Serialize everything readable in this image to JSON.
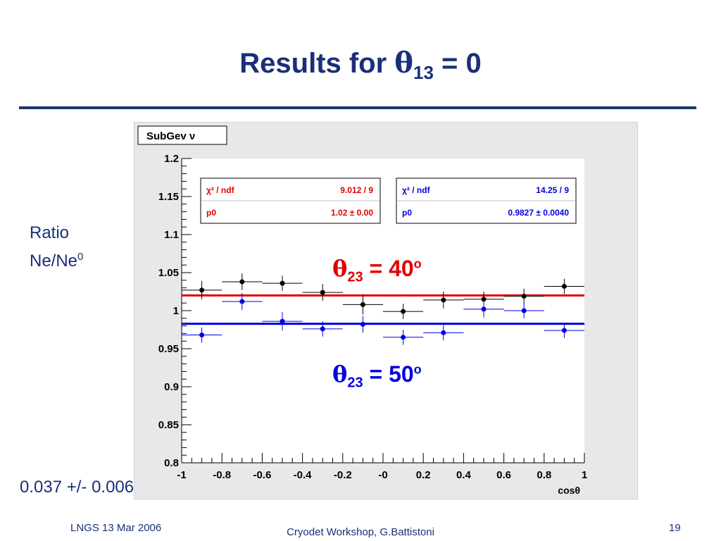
{
  "slide": {
    "title_prefix": "Results for ",
    "title_symbol": "θ",
    "title_sub": "13",
    "title_suffix": " = 0",
    "ylabel_line1": "Ratio",
    "ylabel_line2": "Ne/Ne",
    "ylabel_sup": "0",
    "note": "0.037 +/- 0.006",
    "footer_left": "LNGS 13 Mar 2006",
    "footer_center": "Cryodet Workshop, G.Battistoni",
    "footer_right": "19"
  },
  "annotations": {
    "red": {
      "symbol": "θ",
      "sub": "23",
      "text": " = 40",
      "sup": "o"
    },
    "blue": {
      "symbol": "θ",
      "sub": "23",
      "text": " = 50",
      "sup": "o"
    }
  },
  "colors": {
    "title": "#1a2f7a",
    "red": "#e00000",
    "blue": "#0000e0",
    "black": "#000000",
    "panel": "#e8e8e8",
    "frame": "#ffffff"
  },
  "chart_data": {
    "type": "scatter",
    "title": "SubGev ν",
    "xlabel": "cosθ",
    "ylabel": "",
    "xlim": [
      -1,
      1
    ],
    "ylim": [
      0.8,
      1.2
    ],
    "x_ticks": [
      "-1",
      "-0.8",
      "-0.6",
      "-0.4",
      "-0.2",
      "-0",
      "0.2",
      "0.4",
      "0.6",
      "0.8",
      "1"
    ],
    "x_tick_values": [
      -1,
      -0.8,
      -0.6,
      -0.4,
      -0.2,
      0,
      0.2,
      0.4,
      0.6,
      0.8,
      1
    ],
    "y_ticks": [
      "0.8",
      "0.85",
      "0.9",
      "0.95",
      "1",
      "1.05",
      "1.1",
      "1.15",
      "1.2"
    ],
    "y_tick_values": [
      0.8,
      0.85,
      0.9,
      0.95,
      1.0,
      1.05,
      1.1,
      1.15,
      1.2
    ],
    "series": [
      {
        "color": "#000000",
        "x": [
          -0.9,
          -0.7,
          -0.5,
          -0.3,
          -0.1,
          0.1,
          0.3,
          0.5,
          0.7,
          0.9
        ],
        "y": [
          1.027,
          1.038,
          1.036,
          1.024,
          1.008,
          0.999,
          1.014,
          1.015,
          1.019,
          1.032
        ],
        "yerr": [
          0.012,
          0.011,
          0.01,
          0.011,
          0.013,
          0.01,
          0.011,
          0.01,
          0.01,
          0.01
        ],
        "fit": {
          "p0": 1.02,
          "label_chi": "χ² / ndf",
          "chi_value": "9.012 / 9",
          "label_p0": "p0",
          "p0_value": "1.02 ± 0.00",
          "color": "#e00000"
        }
      },
      {
        "color": "#0000e0",
        "x": [
          -0.9,
          -0.7,
          -0.5,
          -0.3,
          -0.1,
          0.1,
          0.3,
          0.5,
          0.7,
          0.9
        ],
        "y": [
          0.968,
          1.012,
          0.986,
          0.976,
          0.982,
          0.965,
          0.971,
          1.002,
          1.0,
          0.974
        ],
        "yerr": [
          0.01,
          0.011,
          0.012,
          0.01,
          0.011,
          0.01,
          0.01,
          0.011,
          0.01,
          0.01
        ],
        "fit": {
          "p0": 0.9827,
          "label_chi": "χ² / ndf",
          "chi_value": "14.25 / 9",
          "label_p0": "p0",
          "p0_value": "0.9827 ± 0.0040",
          "color": "#0000e0"
        }
      }
    ],
    "grid": false
  }
}
